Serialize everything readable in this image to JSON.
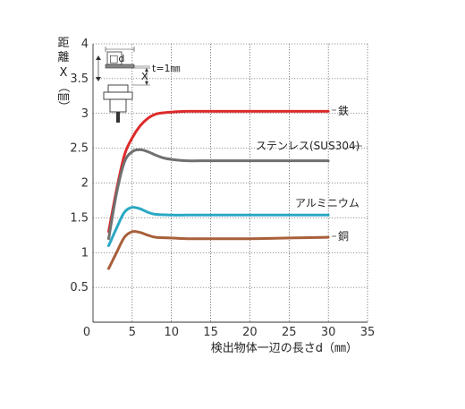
{
  "chart_data": {
    "type": "line",
    "xlabel": "検出物体一辺の長さd（㎜）",
    "ylabel_chars": [
      "距",
      "離",
      "X",
      "（",
      "㎜",
      "）"
    ],
    "xlim": [
      0,
      35
    ],
    "ylim": [
      0,
      4
    ],
    "xticks": [
      0,
      5,
      10,
      15,
      20,
      25,
      30,
      35
    ],
    "xtick_labels": [
      "0",
      "5",
      "10",
      "15",
      "20",
      "25",
      "30",
      "35"
    ],
    "yticks": [
      0.5,
      1,
      1.5,
      2,
      2.5,
      3,
      3.5,
      4
    ],
    "ytick_labels": [
      "0.5",
      "1",
      "1.5",
      "2",
      "2.5",
      "3",
      "3.5",
      "4"
    ],
    "grid": true,
    "series": [
      {
        "name": "鉄",
        "color": "#dd2a2a",
        "x": [
          2,
          3,
          4,
          5,
          6,
          7,
          8,
          9,
          10,
          12,
          15,
          20,
          25,
          30
        ],
        "y": [
          1.3,
          1.9,
          2.4,
          2.65,
          2.82,
          2.93,
          2.99,
          3.01,
          3.02,
          3.03,
          3.03,
          3.03,
          3.03,
          3.03
        ]
      },
      {
        "name": "ステンレス(SUS304)",
        "color": "#707070",
        "x": [
          2,
          3,
          4,
          5,
          6,
          7,
          8,
          9,
          10,
          12,
          15,
          20,
          25,
          30
        ],
        "y": [
          1.2,
          1.85,
          2.3,
          2.45,
          2.48,
          2.45,
          2.4,
          2.36,
          2.34,
          2.32,
          2.32,
          2.32,
          2.32,
          2.32
        ]
      },
      {
        "name": "アルミニウム",
        "color": "#2aa8c4",
        "x": [
          2,
          3,
          4,
          5,
          6,
          7,
          8,
          10,
          12,
          15,
          20,
          25,
          30
        ],
        "y": [
          1.1,
          1.35,
          1.58,
          1.65,
          1.63,
          1.58,
          1.55,
          1.54,
          1.54,
          1.54,
          1.54,
          1.54,
          1.54
        ]
      },
      {
        "name": "銅",
        "color": "#a85f3a",
        "x": [
          2,
          3,
          4,
          5,
          6,
          7,
          8,
          10,
          12,
          15,
          20,
          25,
          30
        ],
        "y": [
          0.77,
          1.0,
          1.22,
          1.3,
          1.29,
          1.25,
          1.22,
          1.21,
          1.2,
          1.2,
          1.2,
          1.21,
          1.22
        ]
      }
    ],
    "inset": {
      "d_label": "□d",
      "x_label": "X",
      "t_label": "t=1㎜"
    }
  }
}
